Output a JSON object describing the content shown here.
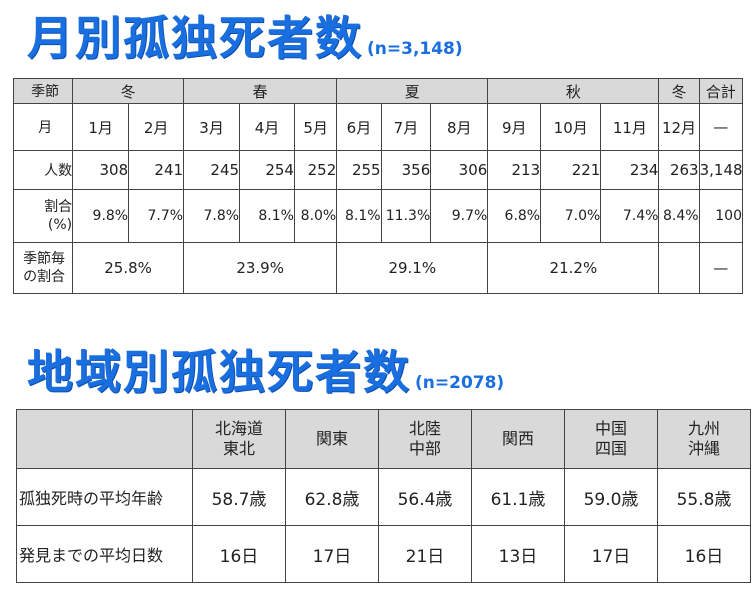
{
  "monthly": {
    "title": "月別孤独死者数",
    "n_label": "(n=3,148)",
    "header": {
      "label": "季節",
      "seasons": [
        "冬",
        "春",
        "夏",
        "秋",
        "冬"
      ],
      "total": "合計"
    },
    "months_label": "月",
    "months": [
      "1月",
      "2月",
      "3月",
      "4月",
      "5月",
      "6月",
      "7月",
      "8月",
      "9月",
      "10月",
      "11月",
      "12月"
    ],
    "months_total": "—",
    "count_label": "人数",
    "counts": [
      "308",
      "241",
      "245",
      "254",
      "252",
      "255",
      "356",
      "306",
      "213",
      "221",
      "234",
      "263"
    ],
    "count_total": "3,148",
    "pct_label_1": "割合",
    "pct_label_2": "(%)",
    "pcts": [
      "9.8%",
      "7.7%",
      "7.8%",
      "8.1%",
      "8.0%",
      "8.1%",
      "11.3%",
      "9.7%",
      "6.8%",
      "7.0%",
      "7.4%",
      "8.4%"
    ],
    "pct_total": "100",
    "season_pct_label_1": "季節毎",
    "season_pct_label_2": "の割合",
    "season_pcts": [
      "25.8%",
      "23.9%",
      "29.1%",
      "21.2%"
    ],
    "season_pct_total": "—"
  },
  "regional": {
    "title": "地域別孤独死者数",
    "n_label": "(n=2078)",
    "regions": [
      {
        "line1": "北海道",
        "line2": "東北"
      },
      {
        "line1": "関東",
        "line2": ""
      },
      {
        "line1": "北陸",
        "line2": "中部"
      },
      {
        "line1": "関西",
        "line2": ""
      },
      {
        "line1": "中国",
        "line2": "四国"
      },
      {
        "line1": "九州",
        "line2": "沖縄"
      }
    ],
    "rows": [
      {
        "label": "孤独死時の平均年齢",
        "values": [
          "58.7歳",
          "62.8歳",
          "56.4歳",
          "61.1歳",
          "59.0歳",
          "55.8歳"
        ]
      },
      {
        "label": "発見までの平均日数",
        "values": [
          "16日",
          "17日",
          "21日",
          "13日",
          "17日",
          "16日"
        ]
      }
    ]
  }
}
